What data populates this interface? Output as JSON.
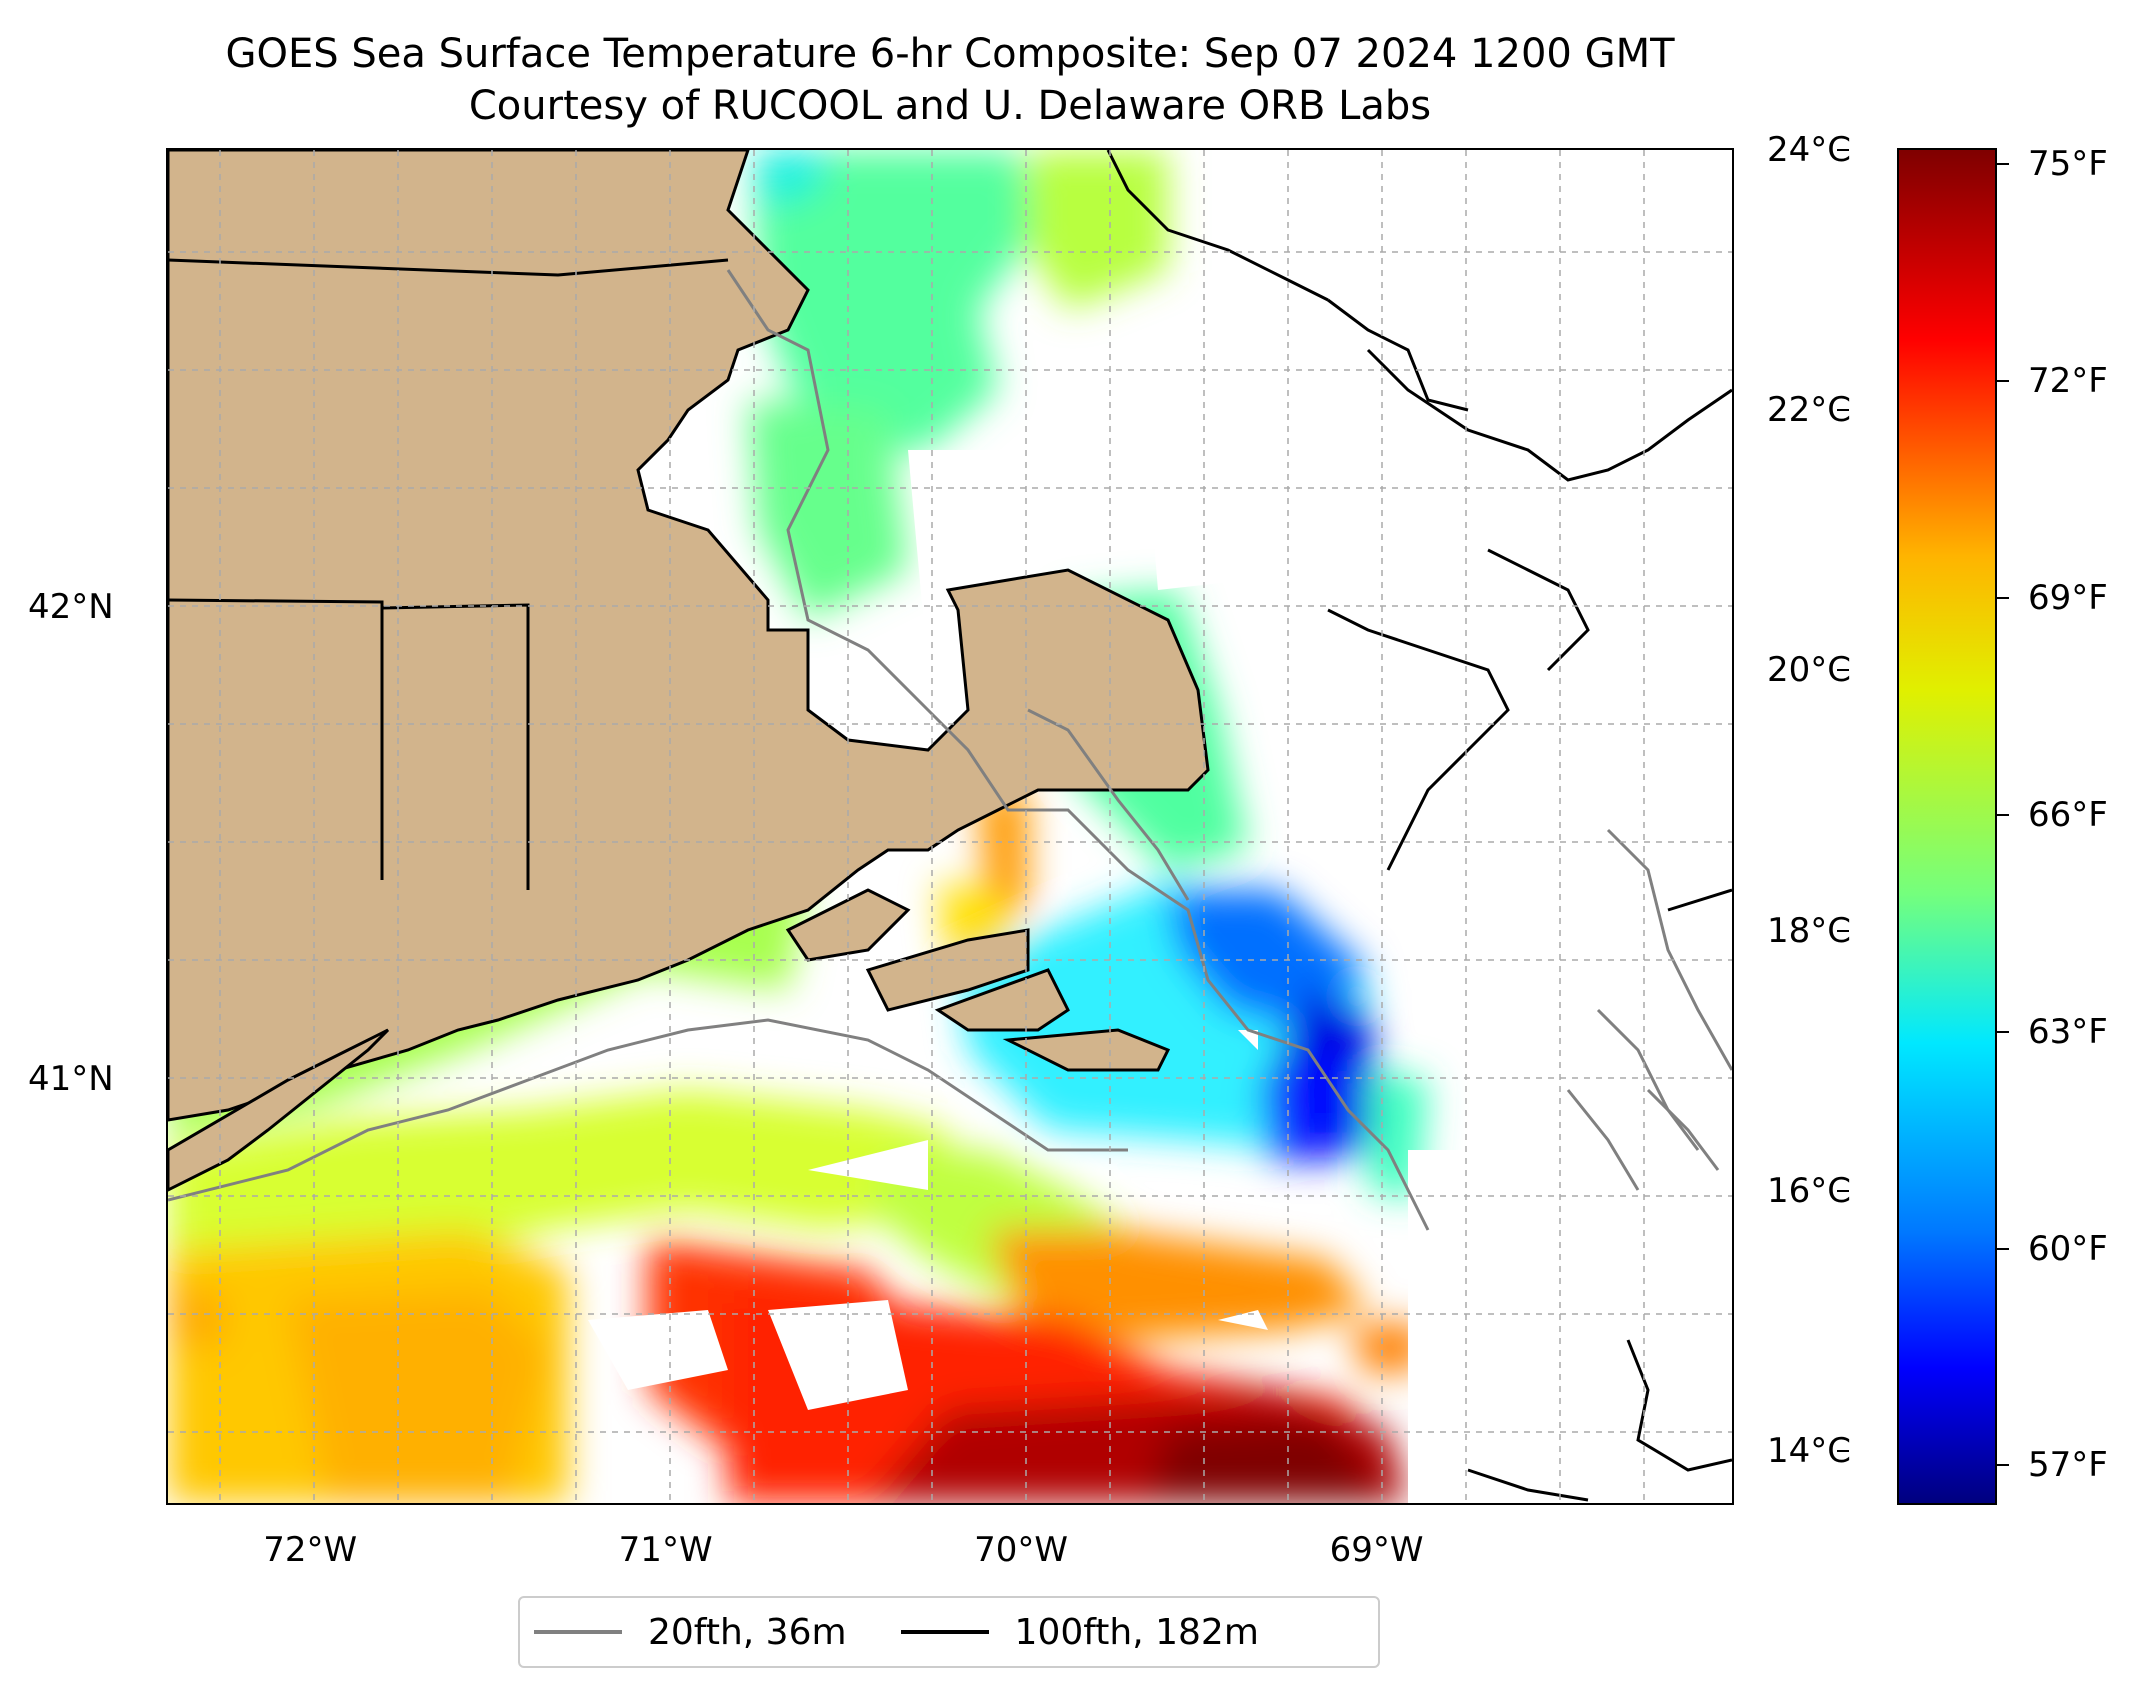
{
  "title": {
    "line1": "GOES Sea Surface Temperature 6-hr Composite: Sep 07 2024 1200 GMT",
    "line2": "Courtesy of RUCOOL and U. Delaware ORB Labs"
  },
  "map": {
    "longitude_range": [
      -72.4,
      -68.0
    ],
    "latitude_range": [
      40.1,
      42.97
    ],
    "longitude_ticks": [
      {
        "value": -72,
        "label": "72°W"
      },
      {
        "value": -71,
        "label": "71°W"
      },
      {
        "value": -70,
        "label": "70°W"
      },
      {
        "value": -69,
        "label": "69°W"
      }
    ],
    "latitude_ticks": [
      {
        "value": 42,
        "label": "42°N"
      },
      {
        "value": 41,
        "label": "41°N"
      }
    ],
    "gridlines": true,
    "land_color": "#d2b48c",
    "no_data_color": "#ffffff",
    "depth_contour_colors": {
      "20fth": "#808080",
      "100fth": "#000000"
    }
  },
  "colorbar": {
    "colormap": "jet",
    "range_celsius": [
      13.6,
      24.0
    ],
    "celsius_ticks": [
      {
        "value": 24,
        "label": "24°C"
      },
      {
        "value": 22,
        "label": "22°C"
      },
      {
        "value": 20,
        "label": "20°C"
      },
      {
        "value": 18,
        "label": "18°C"
      },
      {
        "value": 16,
        "label": "16°C"
      },
      {
        "value": 14,
        "label": "14°C"
      }
    ],
    "fahrenheit_ticks": [
      {
        "value": 75,
        "label": "75°F"
      },
      {
        "value": 72,
        "label": "72°F"
      },
      {
        "value": 69,
        "label": "69°F"
      },
      {
        "value": 66,
        "label": "66°F"
      },
      {
        "value": 63,
        "label": "63°F"
      },
      {
        "value": 60,
        "label": "60°F"
      },
      {
        "value": 57,
        "label": "57°F"
      }
    ]
  },
  "legend": {
    "placement": "bottom-center",
    "items": [
      {
        "label": "20fth, 36m",
        "color": "#808080"
      },
      {
        "label": "100fth, 182m",
        "color": "#000000"
      }
    ]
  }
}
